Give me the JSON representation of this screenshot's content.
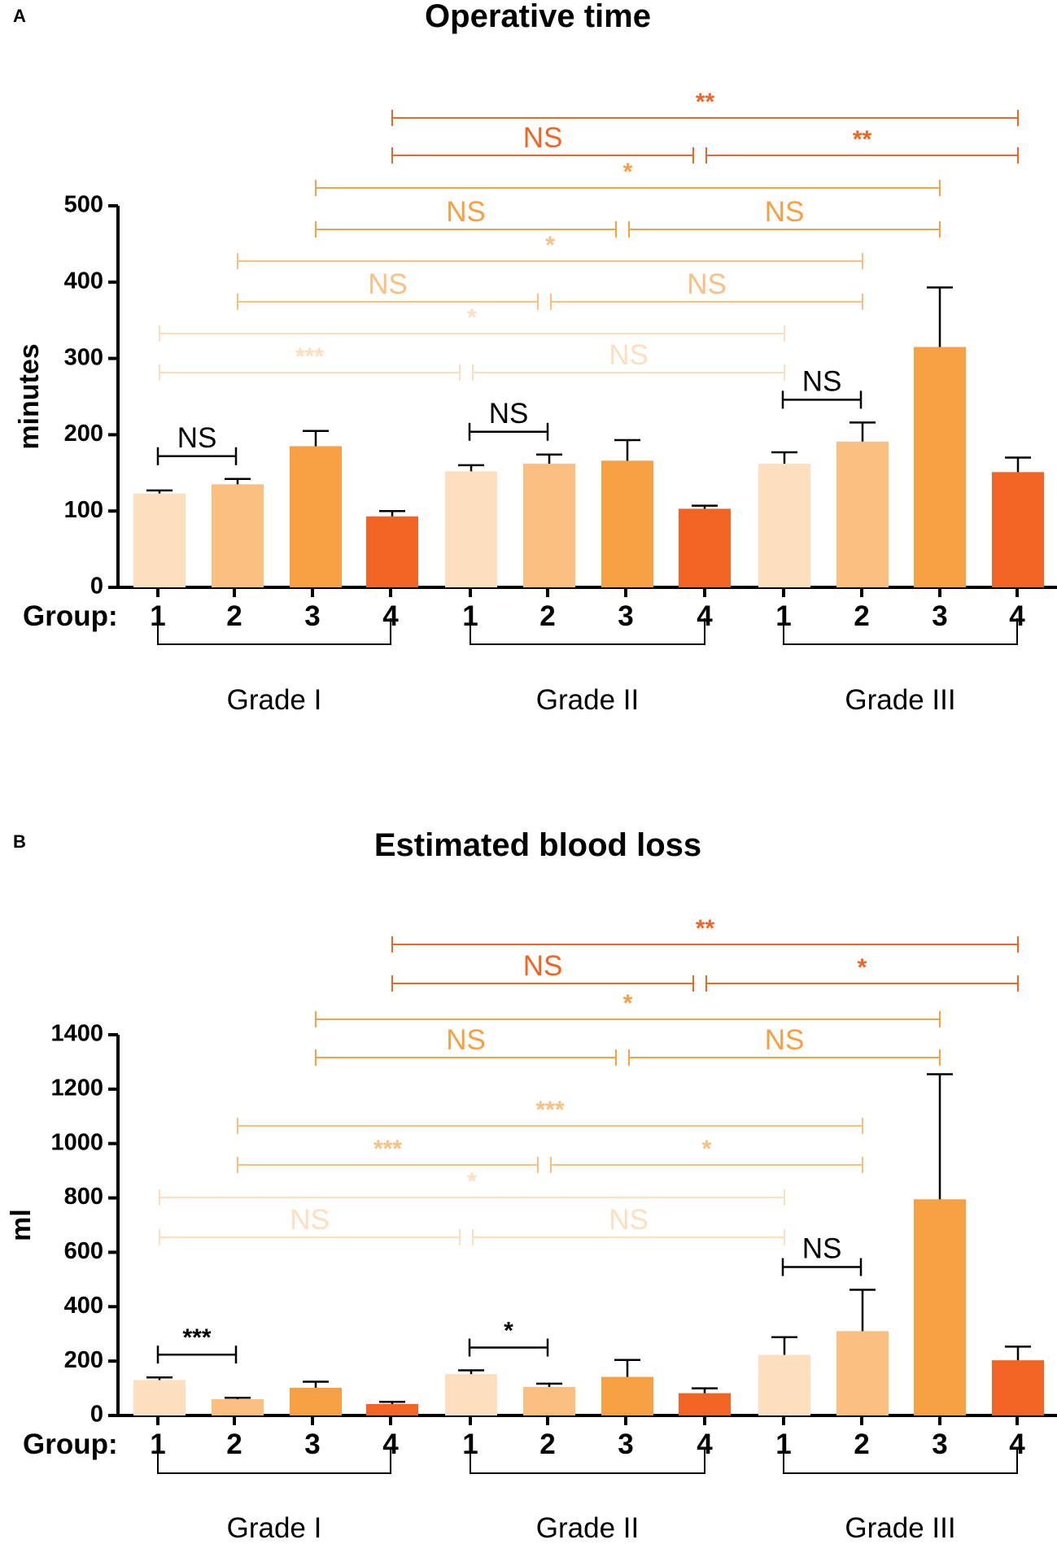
{
  "chart_data": [
    {
      "panel": "A",
      "type": "bar",
      "title": "Operative time",
      "ylabel": "minutes",
      "xlabel": "Group:",
      "ylim": [
        0,
        500
      ],
      "yticks": [
        0,
        100,
        200,
        300,
        400,
        500
      ],
      "grades": [
        {
          "name": "Grade I",
          "groups": [
            "1",
            "2",
            "3",
            "4"
          ],
          "values": [
            123,
            135,
            185,
            93
          ],
          "errors": [
            4,
            7,
            20,
            7
          ]
        },
        {
          "name": "Grade II",
          "groups": [
            "1",
            "2",
            "3",
            "4"
          ],
          "values": [
            152,
            162,
            166,
            103
          ],
          "errors": [
            8,
            12,
            27,
            4
          ]
        },
        {
          "name": "Grade III",
          "groups": [
            "1",
            "2",
            "3",
            "4"
          ],
          "values": [
            162,
            191,
            315,
            151
          ],
          "errors": [
            15,
            25,
            78,
            19
          ]
        }
      ],
      "local_brackets": [
        {
          "grade": 0,
          "from": 0,
          "to": 1,
          "label": "NS"
        },
        {
          "grade": 1,
          "from": 0,
          "to": 1,
          "label": "NS"
        },
        {
          "grade": 2,
          "from": 0,
          "to": 1,
          "label": "NS"
        }
      ],
      "group_comparisons": [
        {
          "group": 1,
          "g1_g2": "***",
          "g2_g3": "NS",
          "g1_g3": "*"
        },
        {
          "group": 2,
          "g1_g2": "NS",
          "g2_g3": "NS",
          "g1_g3": "*"
        },
        {
          "group": 3,
          "g1_g2": "NS",
          "g2_g3": "NS",
          "g1_g3": "*"
        },
        {
          "group": 4,
          "g1_g2": "NS",
          "g2_g3": "**",
          "g1_g3": "**"
        }
      ]
    },
    {
      "panel": "B",
      "type": "bar",
      "title": "Estimated blood loss",
      "ylabel": "ml",
      "xlabel": "Group:",
      "ylim": [
        0,
        1400
      ],
      "yticks": [
        0,
        200,
        400,
        600,
        800,
        1000,
        1200,
        1400
      ],
      "grades": [
        {
          "name": "Grade I",
          "groups": [
            "1",
            "2",
            "3",
            "4"
          ],
          "values": [
            130,
            60,
            102,
            42
          ],
          "errors": [
            10,
            5,
            22,
            8
          ]
        },
        {
          "name": "Grade II",
          "groups": [
            "1",
            "2",
            "3",
            "4"
          ],
          "values": [
            152,
            105,
            142,
            82
          ],
          "errors": [
            14,
            12,
            62,
            18
          ]
        },
        {
          "name": "Grade III",
          "groups": [
            "1",
            "2",
            "3",
            "4"
          ],
          "values": [
            223,
            310,
            795,
            203
          ],
          "errors": [
            65,
            152,
            460,
            50
          ]
        }
      ],
      "local_brackets": [
        {
          "grade": 0,
          "from": 0,
          "to": 1,
          "label": "***"
        },
        {
          "grade": 1,
          "from": 0,
          "to": 1,
          "label": "*"
        },
        {
          "grade": 2,
          "from": 0,
          "to": 1,
          "label": "NS"
        }
      ],
      "group_comparisons": [
        {
          "group": 1,
          "g1_g2": "NS",
          "g2_g3": "NS",
          "g1_g3": "*"
        },
        {
          "group": 2,
          "g1_g2": "***",
          "g2_g3": "*",
          "g1_g3": "***"
        },
        {
          "group": 3,
          "g1_g2": "NS",
          "g2_g3": "NS",
          "g1_g3": "*"
        },
        {
          "group": 4,
          "g1_g2": "NS",
          "g2_g3": "*",
          "g1_g3": "**"
        }
      ]
    }
  ],
  "colors": {
    "group_1": "#FDDFC0",
    "group_2": "#FBBF82",
    "group_3": "#F7A043",
    "group_4": "#F26424",
    "axis": "#000000"
  }
}
